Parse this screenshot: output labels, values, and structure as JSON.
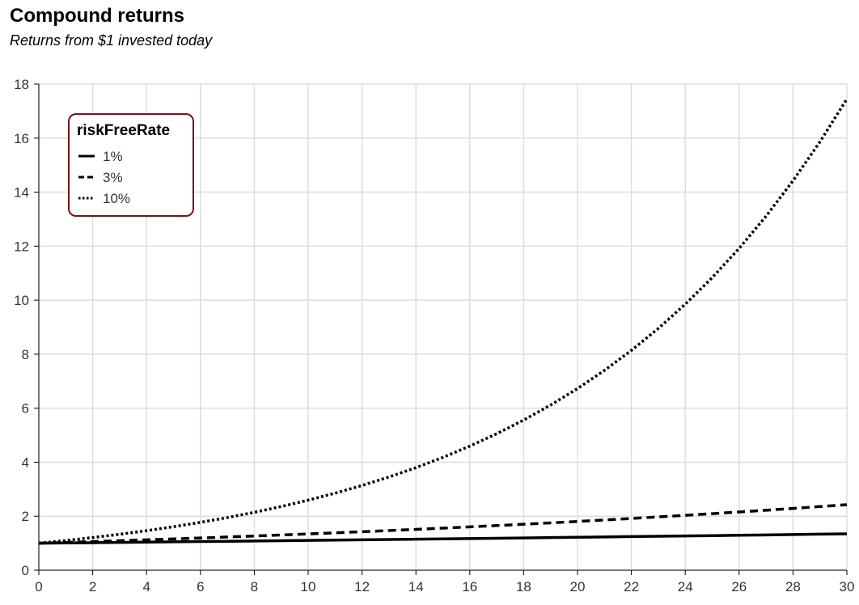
{
  "header": {
    "title": "Compound returns",
    "subtitle": "Returns from $1 invested today"
  },
  "colors": {
    "grid": "#dddddd",
    "axis": "#000000",
    "line": "#000000",
    "legend_border": "#7b1113"
  },
  "chart_data": {
    "type": "line",
    "title": "Compound returns",
    "subtitle": "Returns from $1 invested today",
    "xlabel": "",
    "ylabel": "",
    "xlim": [
      0,
      30
    ],
    "ylim": [
      0,
      18
    ],
    "x_ticks": [
      "0",
      "2",
      "4",
      "6",
      "8",
      "10",
      "12",
      "14",
      "16",
      "18",
      "20",
      "22",
      "24",
      "26",
      "28",
      "30"
    ],
    "y_ticks": [
      "0",
      "2",
      "4",
      "6",
      "8",
      "10",
      "12",
      "14",
      "16",
      "18"
    ],
    "grid": true,
    "legend": {
      "title": "riskFreeRate",
      "placement": "top-left",
      "entries": [
        {
          "label": "1%",
          "dash": "solid"
        },
        {
          "label": "3%",
          "dash": "dashed"
        },
        {
          "label": "10%",
          "dash": "dotted"
        }
      ]
    },
    "x": [
      0,
      1,
      2,
      3,
      4,
      5,
      6,
      7,
      8,
      9,
      10,
      11,
      12,
      13,
      14,
      15,
      16,
      17,
      18,
      19,
      20,
      21,
      22,
      23,
      24,
      25,
      26,
      27,
      28,
      29,
      30
    ],
    "series": [
      {
        "name": "1%",
        "dash": "solid",
        "values": [
          1,
          1.01,
          1.02,
          1.03,
          1.041,
          1.051,
          1.062,
          1.072,
          1.083,
          1.094,
          1.105,
          1.116,
          1.127,
          1.138,
          1.149,
          1.161,
          1.173,
          1.184,
          1.196,
          1.208,
          1.22,
          1.232,
          1.245,
          1.257,
          1.27,
          1.282,
          1.295,
          1.308,
          1.321,
          1.335,
          1.348
        ]
      },
      {
        "name": "3%",
        "dash": "dashed",
        "values": [
          1,
          1.03,
          1.061,
          1.093,
          1.126,
          1.159,
          1.194,
          1.23,
          1.267,
          1.305,
          1.344,
          1.384,
          1.426,
          1.469,
          1.513,
          1.558,
          1.605,
          1.653,
          1.702,
          1.754,
          1.806,
          1.86,
          1.916,
          1.974,
          2.033,
          2.094,
          2.157,
          2.221,
          2.288,
          2.357,
          2.427
        ]
      },
      {
        "name": "10%",
        "dash": "dotted",
        "values": [
          1,
          1.1,
          1.21,
          1.331,
          1.464,
          1.611,
          1.772,
          1.949,
          2.144,
          2.358,
          2.594,
          2.853,
          3.138,
          3.452,
          3.797,
          4.177,
          4.595,
          5.054,
          5.56,
          6.116,
          6.727,
          7.4,
          8.14,
          8.954,
          9.85,
          10.835,
          11.918,
          13.11,
          14.421,
          15.863,
          17.449
        ]
      }
    ]
  }
}
